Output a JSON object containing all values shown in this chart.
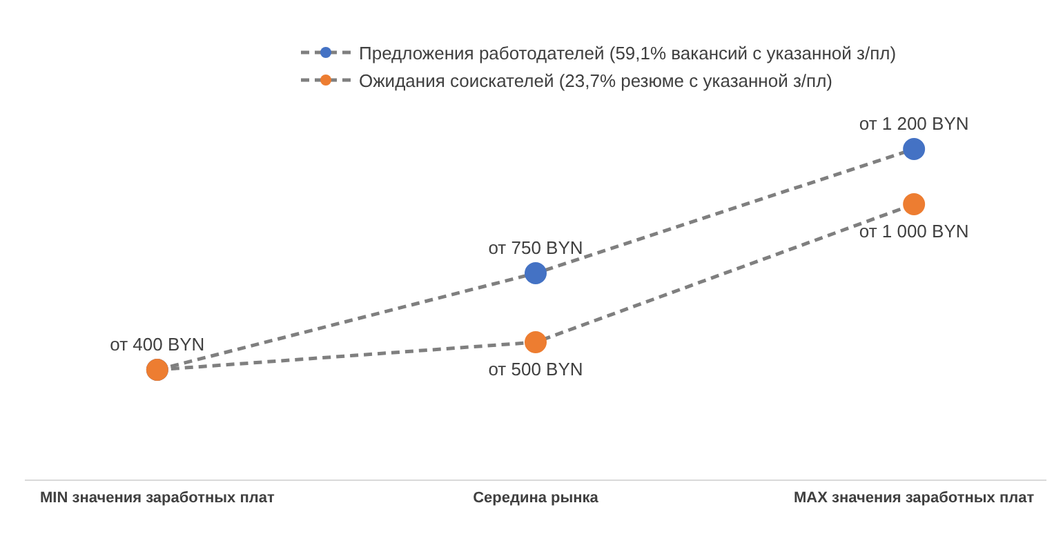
{
  "chart_data": {
    "type": "line",
    "categories": [
      "MIN значения заработных плат",
      "Середина рынка",
      "MAX значения заработных плат"
    ],
    "series": [
      {
        "name": "Предложения работодателей (59,1% вакансий с указанной з/пл)",
        "color": "#4472c4",
        "values": [
          400,
          750,
          1200
        ],
        "value_labels": [
          null,
          "от 750 BYN",
          "от 1 200 BYN"
        ]
      },
      {
        "name": "Ожидания соискателей (23,7% резюме с указанной з/пл)",
        "color": "#ed7d31",
        "values": [
          400,
          500,
          1000
        ],
        "value_labels": [
          "от 400 BYN",
          "от 500 BYN",
          "от 1 000 BYN"
        ]
      }
    ],
    "legend": "top",
    "marker": "circle",
    "line_style": "dashed",
    "tick_labels": "x",
    "grid": false
  }
}
